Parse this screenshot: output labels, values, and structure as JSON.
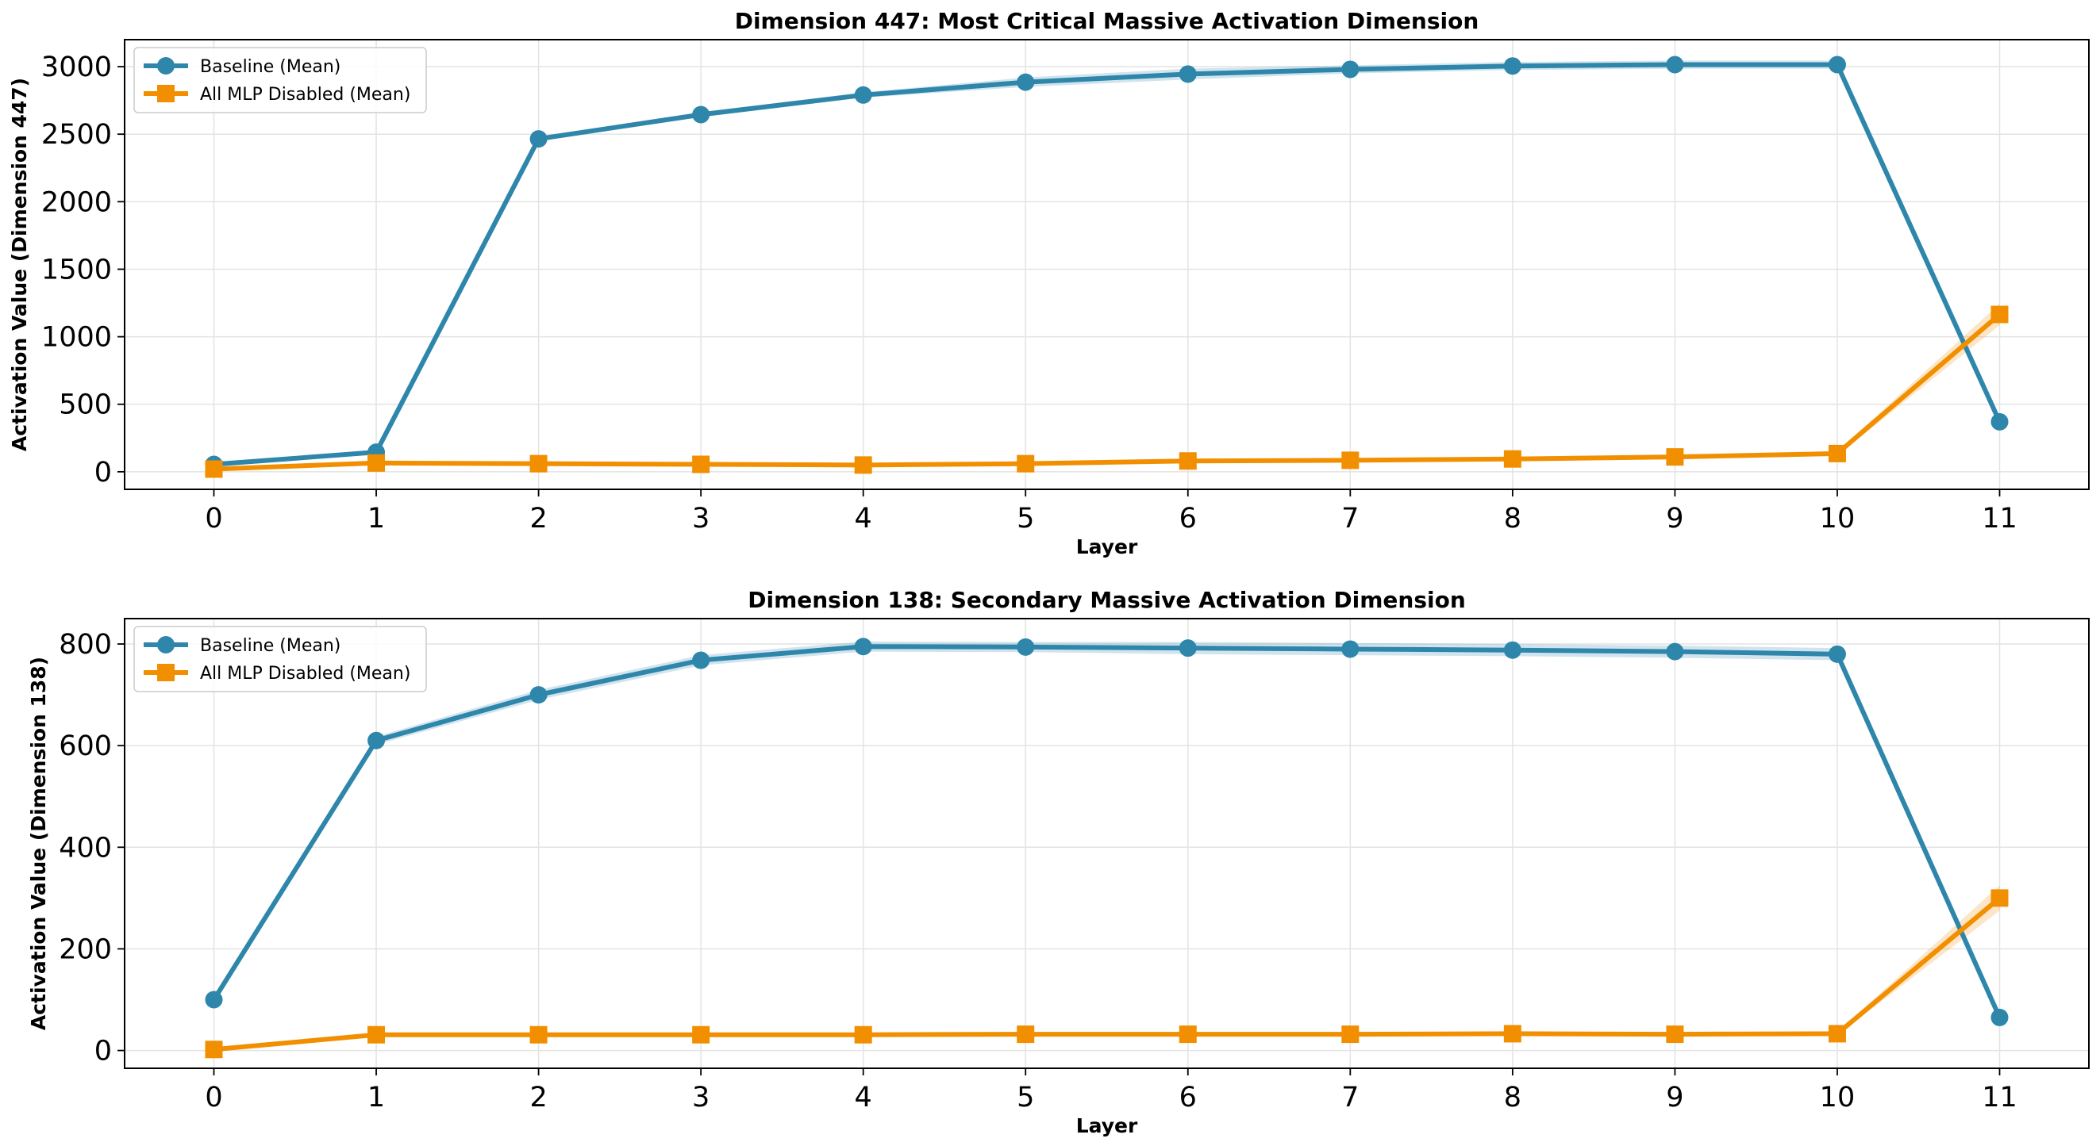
{
  "chart_data": [
    {
      "type": "line",
      "title": "Dimension 447: Most Critical Massive Activation Dimension",
      "xlabel": "Layer",
      "ylabel": "Activation Value (Dimension 447)",
      "x": [
        0,
        1,
        2,
        3,
        4,
        5,
        6,
        7,
        8,
        9,
        10,
        11
      ],
      "xticks": [
        0,
        1,
        2,
        3,
        4,
        5,
        6,
        7,
        8,
        9,
        10,
        11
      ],
      "yticks": [
        0,
        500,
        1000,
        1500,
        2000,
        2500,
        3000
      ],
      "xlim": [
        -0.55,
        11.55
      ],
      "ylim": [
        -130,
        3200
      ],
      "grid": true,
      "legend_position": "upper-left",
      "series": [
        {
          "name": "Baseline (Mean)",
          "color": "#2e86ab",
          "marker": "circle",
          "values": [
            55,
            145,
            2465,
            2645,
            2790,
            2885,
            2945,
            2980,
            3005,
            3015,
            3015,
            370
          ],
          "band": [
            10,
            12,
            15,
            18,
            20,
            35,
            40,
            30,
            30,
            30,
            30,
            20
          ]
        },
        {
          "name": "All MLP Disabled (Mean)",
          "color": "#f18f01",
          "marker": "square",
          "values": [
            20,
            65,
            60,
            55,
            50,
            60,
            80,
            85,
            95,
            110,
            135,
            1165
          ],
          "band": [
            5,
            8,
            8,
            8,
            8,
            8,
            10,
            10,
            10,
            12,
            15,
            80
          ]
        }
      ]
    },
    {
      "type": "line",
      "title": "Dimension 138: Secondary Massive Activation Dimension",
      "xlabel": "Layer",
      "ylabel": "Activation Value (Dimension 138)",
      "x": [
        0,
        1,
        2,
        3,
        4,
        5,
        6,
        7,
        8,
        9,
        10,
        11
      ],
      "xticks": [
        0,
        1,
        2,
        3,
        4,
        5,
        6,
        7,
        8,
        9,
        10,
        11
      ],
      "yticks": [
        0,
        200,
        400,
        600,
        800
      ],
      "xlim": [
        -0.55,
        11.55
      ],
      "ylim": [
        -35,
        850
      ],
      "grid": true,
      "legend_position": "upper-left",
      "series": [
        {
          "name": "Baseline (Mean)",
          "color": "#2e86ab",
          "marker": "circle",
          "values": [
            100,
            610,
            700,
            768,
            795,
            794,
            792,
            790,
            788,
            785,
            780,
            65
          ],
          "band": [
            4,
            8,
            10,
            10,
            10,
            10,
            12,
            12,
            12,
            12,
            12,
            8
          ]
        },
        {
          "name": "All MLP Disabled (Mean)",
          "color": "#f18f01",
          "marker": "square",
          "values": [
            2,
            31,
            31,
            31,
            31,
            32,
            32,
            32,
            33,
            32,
            33,
            300
          ],
          "band": [
            2,
            3,
            3,
            3,
            3,
            3,
            3,
            3,
            3,
            3,
            3,
            25
          ]
        }
      ]
    }
  ]
}
